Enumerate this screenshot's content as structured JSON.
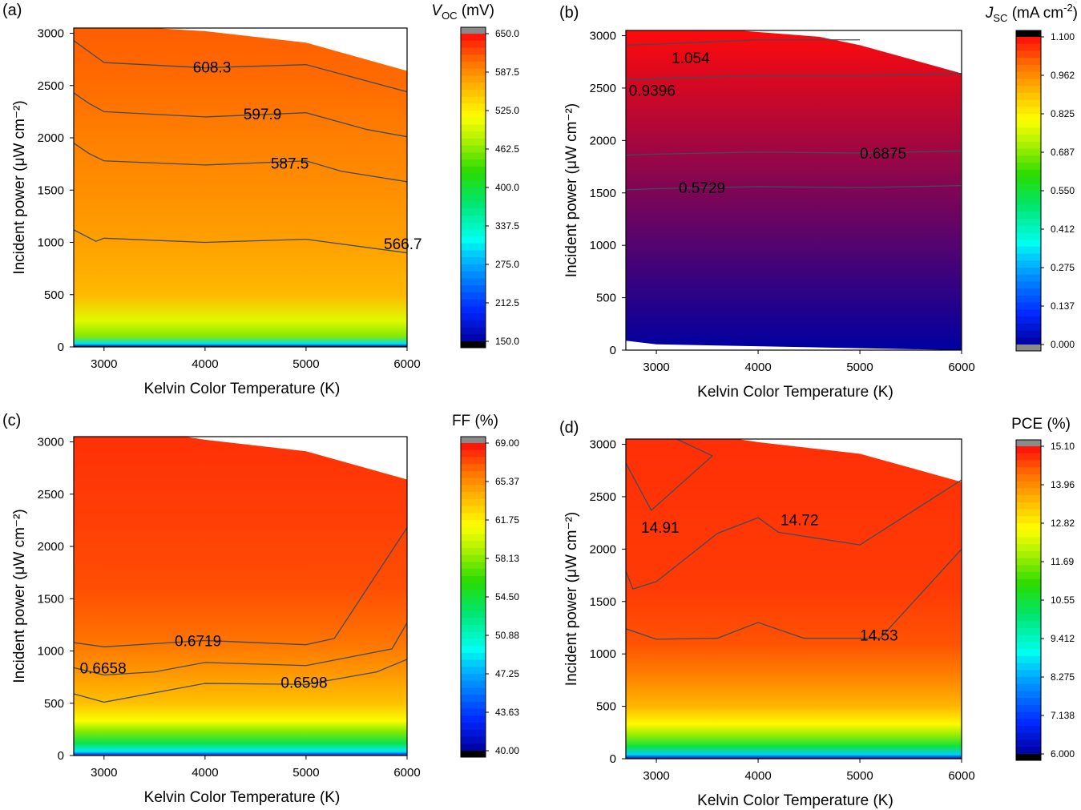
{
  "chart_data": [
    {
      "type": "heatmap",
      "panel": "(a)",
      "xlabel": "Kelvin Color Temperature (K)",
      "ylabel": "Incident power (μW cm⁻²)",
      "x_ticks": [
        3000,
        4000,
        5000,
        6000
      ],
      "y_ticks": [
        0,
        500,
        1000,
        1500,
        2000,
        2500,
        3000
      ],
      "xlim": [
        2700,
        6000
      ],
      "ylim": [
        0,
        3050
      ],
      "colorbar": {
        "title_main": "V",
        "title_sub": "OC",
        "title_rest": " (mV)",
        "title_sup": "",
        "title_end": "",
        "min": 150.0,
        "max": 650.0,
        "ticks": [
          "650.0",
          "587.5",
          "525.0",
          "462.5",
          "400.0",
          "337.5",
          "275.0",
          "212.5",
          "150.0"
        ]
      },
      "top_boundary": [
        [
          2700,
          3050
        ],
        [
          3500,
          3050
        ],
        [
          4000,
          3020
        ],
        [
          5000,
          2910
        ],
        [
          6000,
          2640
        ]
      ],
      "gradient_stops": [
        [
          0,
          150
        ],
        [
          30,
          300
        ],
        [
          100,
          460
        ],
        [
          250,
          500
        ],
        [
          500,
          560
        ],
        [
          1000,
          575
        ],
        [
          1500,
          585
        ],
        [
          2000,
          595
        ],
        [
          2500,
          606
        ],
        [
          3050,
          612
        ]
      ],
      "contours": [
        {
          "level": "608.3",
          "points": [
            [
              2700,
              2930
            ],
            [
              3000,
              2720
            ],
            [
              4000,
              2670
            ],
            [
              5000,
              2700
            ],
            [
              6000,
              2440
            ]
          ]
        },
        {
          "level": "597.9",
          "points": [
            [
              2700,
              2430
            ],
            [
              2850,
              2330
            ],
            [
              3000,
              2250
            ],
            [
              4000,
              2200
            ],
            [
              5000,
              2240
            ],
            [
              5600,
              2080
            ],
            [
              6000,
              2010
            ]
          ]
        },
        {
          "level": "587.5",
          "points": [
            [
              2700,
              1950
            ],
            [
              2850,
              1850
            ],
            [
              3000,
              1780
            ],
            [
              4000,
              1740
            ],
            [
              5000,
              1780
            ],
            [
              5350,
              1680
            ],
            [
              6000,
              1580
            ]
          ]
        },
        {
          "level": "566.7",
          "points": [
            [
              2700,
              1120
            ],
            [
              2920,
              1010
            ],
            [
              3000,
              1040
            ],
            [
              4000,
              1000
            ],
            [
              5000,
              1030
            ],
            [
              6000,
              900
            ]
          ]
        }
      ],
      "contour_labels": [
        {
          "text": "608.3",
          "x": 3880,
          "y": 2680
        },
        {
          "text": "597.9",
          "x": 4380,
          "y": 2230
        },
        {
          "text": "587.5",
          "x": 4650,
          "y": 1760
        },
        {
          "text": "566.7",
          "x": 5770,
          "y": 990
        }
      ]
    },
    {
      "type": "heatmap",
      "panel": "(b)",
      "xlabel": "Kelvin Color Temperature (K)",
      "ylabel": "Incident power (μW cm⁻²)",
      "x_ticks": [
        3000,
        4000,
        5000,
        6000
      ],
      "y_ticks": [
        0,
        500,
        1000,
        1500,
        2000,
        2500,
        3000
      ],
      "xlim": [
        2700,
        6000
      ],
      "ylim": [
        0,
        3050
      ],
      "colorbar": {
        "title_main": "J",
        "title_sub": "SC",
        "title_rest": " (mA cm",
        "title_sup": "-2",
        "title_end": ")",
        "min": 0.0,
        "max": 1.1,
        "ticks": [
          "1.100",
          "0.962",
          "0.825",
          "0.687",
          "0.550",
          "0.412",
          "0.275",
          "0.137",
          "0.000"
        ]
      },
      "top_boundary": [
        [
          2700,
          3050
        ],
        [
          3800,
          3050
        ],
        [
          4600,
          2990
        ],
        [
          5000,
          2910
        ],
        [
          6000,
          2640
        ]
      ],
      "bottom_boundary": [
        [
          2700,
          90
        ],
        [
          3000,
          55
        ],
        [
          6000,
          0
        ]
      ],
      "gradient_stops": [
        [
          0,
          0.0
        ],
        [
          3050,
          1.1
        ]
      ],
      "contours": [
        {
          "level": "1.054",
          "points": [
            [
              2700,
              2910
            ],
            [
              3000,
              2920
            ],
            [
              4000,
              2960
            ],
            [
              5000,
              2960
            ]
          ]
        },
        {
          "level": "0.9396",
          "points": [
            [
              2700,
              2580
            ],
            [
              3000,
              2590
            ],
            [
              4000,
              2620
            ],
            [
              5000,
              2620
            ],
            [
              6000,
              2640
            ]
          ]
        },
        {
          "level": "0.6875",
          "points": [
            [
              2700,
              1860
            ],
            [
              3000,
              1870
            ],
            [
              4000,
              1890
            ],
            [
              5000,
              1880
            ],
            [
              6000,
              1900
            ]
          ]
        },
        {
          "level": "0.5729",
          "points": [
            [
              2700,
              1530
            ],
            [
              3000,
              1540
            ],
            [
              4000,
              1560
            ],
            [
              5000,
              1550
            ],
            [
              6000,
              1570
            ]
          ]
        }
      ],
      "contour_labels": [
        {
          "text": "1.054",
          "x": 3150,
          "y": 2790
        },
        {
          "text": "0.9396",
          "x": 2730,
          "y": 2480
        },
        {
          "text": "0.6875",
          "x": 5000,
          "y": 1880
        },
        {
          "text": "0.5729",
          "x": 3220,
          "y": 1550
        }
      ]
    },
    {
      "type": "heatmap",
      "panel": "(c)",
      "xlabel": "Kelvin Color Temperature (K)",
      "ylabel": "Incident power (μW cm⁻²)",
      "x_ticks": [
        3000,
        4000,
        5000,
        6000
      ],
      "y_ticks": [
        0,
        500,
        1000,
        1500,
        2000,
        2500,
        3000
      ],
      "xlim": [
        2700,
        6000
      ],
      "ylim": [
        0,
        3050
      ],
      "colorbar": {
        "title_main": "FF (%)",
        "title_sub": "",
        "title_rest": "",
        "title_sup": "",
        "title_end": "",
        "min": 40.0,
        "max": 69.0,
        "ticks": [
          "69.00",
          "65.37",
          "61.75",
          "58.13",
          "54.50",
          "50.88",
          "47.25",
          "43.63",
          "40.00"
        ]
      },
      "top_boundary": [
        [
          2700,
          3050
        ],
        [
          3800,
          3050
        ],
        [
          4000,
          3020
        ],
        [
          5000,
          2910
        ],
        [
          6000,
          2640
        ]
      ],
      "gradient_stops": [
        [
          0,
          42
        ],
        [
          40,
          49
        ],
        [
          120,
          54
        ],
        [
          230,
          58
        ],
        [
          330,
          61
        ],
        [
          500,
          63.5
        ],
        [
          800,
          65
        ],
        [
          1100,
          66.2
        ],
        [
          1600,
          67.2
        ],
        [
          2200,
          67.6
        ],
        [
          3050,
          68
        ]
      ],
      "contours": [
        {
          "level": "0.6719",
          "points": [
            [
              2700,
              1080
            ],
            [
              3000,
              1040
            ],
            [
              4000,
              1100
            ],
            [
              5000,
              1060
            ],
            [
              5280,
              1120
            ],
            [
              6000,
              2180
            ]
          ]
        },
        {
          "level": "0.6658",
          "points": [
            [
              2700,
              840
            ],
            [
              3000,
              770
            ],
            [
              3500,
              800
            ],
            [
              4000,
              890
            ],
            [
              5000,
              860
            ],
            [
              5850,
              1020
            ],
            [
              6000,
              1270
            ]
          ]
        },
        {
          "level": "0.6598",
          "points": [
            [
              2700,
              590
            ],
            [
              3000,
              510
            ],
            [
              4000,
              690
            ],
            [
              5000,
              680
            ],
            [
              5700,
              800
            ],
            [
              6000,
              920
            ]
          ]
        }
      ],
      "contour_labels": [
        {
          "text": "0.6719",
          "x": 3700,
          "y": 1100
        },
        {
          "text": "0.6658",
          "x": 2760,
          "y": 840
        },
        {
          "text": "0.6598",
          "x": 4750,
          "y": 700
        }
      ]
    },
    {
      "type": "heatmap",
      "panel": "(d)",
      "xlabel": "Kelvin Color Temperature (K)",
      "ylabel": "Incident power (μW cm⁻²)",
      "x_ticks": [
        3000,
        4000,
        5000,
        6000
      ],
      "y_ticks": [
        0,
        500,
        1000,
        1500,
        2000,
        2500,
        3000
      ],
      "xlim": [
        2700,
        6000
      ],
      "ylim": [
        0,
        3050
      ],
      "colorbar": {
        "title_main": "PCE (%)",
        "title_sub": "",
        "title_rest": "",
        "title_sup": "",
        "title_end": "",
        "min": 6.0,
        "max": 15.1,
        "ticks": [
          "15.10",
          "13.96",
          "12.82",
          "11.69",
          "10.55",
          "9.412",
          "8.275",
          "7.138",
          "6.000"
        ]
      },
      "top_boundary": [
        [
          2700,
          3050
        ],
        [
          3800,
          3050
        ],
        [
          4000,
          3020
        ],
        [
          5000,
          2910
        ],
        [
          6000,
          2640
        ]
      ],
      "gradient_stops": [
        [
          0,
          6.2
        ],
        [
          40,
          8.6
        ],
        [
          120,
          10.5
        ],
        [
          230,
          11.8
        ],
        [
          330,
          12.7
        ],
        [
          500,
          13.5
        ],
        [
          800,
          14.1
        ],
        [
          1100,
          14.5
        ],
        [
          1600,
          14.7
        ],
        [
          3050,
          14.8
        ]
      ],
      "contours": [
        {
          "level": "14.91",
          "points": [
            [
              2700,
              2820
            ],
            [
              2950,
              2370
            ],
            [
              3550,
              2890
            ],
            [
              3200,
              3050
            ]
          ]
        },
        {
          "level": "14.72",
          "points": [
            [
              2700,
              1790
            ],
            [
              2770,
              1620
            ],
            [
              3000,
              1690
            ],
            [
              3600,
              2150
            ],
            [
              4000,
              2300
            ],
            [
              4200,
              2160
            ],
            [
              5000,
              2040
            ],
            [
              6000,
              2660
            ]
          ]
        },
        {
          "level": "14.53",
          "points": [
            [
              2700,
              1240
            ],
            [
              3000,
              1140
            ],
            [
              3600,
              1150
            ],
            [
              4000,
              1300
            ],
            [
              4450,
              1150
            ],
            [
              5200,
              1150
            ],
            [
              6000,
              2000
            ]
          ]
        }
      ],
      "contour_labels": [
        {
          "text": "14.91",
          "x": 2850,
          "y": 2210
        },
        {
          "text": "14.72",
          "x": 4220,
          "y": 2280
        },
        {
          "text": "14.53",
          "x": 5000,
          "y": 1180
        }
      ]
    }
  ]
}
